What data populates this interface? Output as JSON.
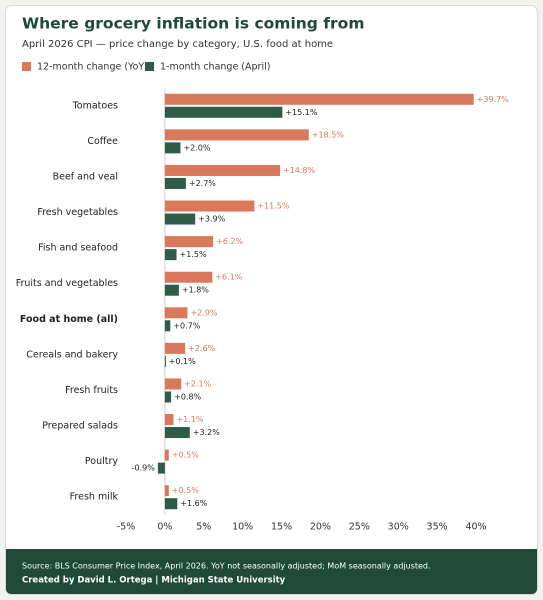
{
  "chart_data": {
    "type": "hbar",
    "title": "Where grocery inflation is coming from",
    "subtitle": "April 2026 CPI — price change by category, U.S. food at home",
    "source": "Source: BLS Consumer Price Index, April 2026. YoY not seasonally adjusted; MoM seasonally adjusted.",
    "credit": "Created by David L. Ortega | Michigan State University",
    "categories": [
      "Tomatoes",
      "Coffee",
      "Beef and veal",
      "Fresh vegetables",
      "Fish and seafood",
      "Fruits and vegetables",
      "Food at home (all)",
      "Cereals and bakery",
      "Fresh fruits",
      "Prepared salads",
      "Poultry",
      "Fresh milk"
    ],
    "bold_categories": [
      "Food at home (all)"
    ],
    "series": [
      {
        "name": "12-month change (YoY)",
        "color": "#d9785a",
        "values": [
          39.7,
          18.5,
          14.8,
          11.5,
          6.2,
          6.1,
          2.9,
          2.6,
          2.1,
          1.1,
          0.5,
          0.5
        ],
        "value_labels": [
          "+39.7%",
          "+18.5%",
          "+14.8%",
          "+11.5%",
          "+6.2%",
          "+6.1%",
          "+2.9%",
          "+2.6%",
          "+2.1%",
          "+1.1%",
          "+0.5%",
          "+0.5%"
        ]
      },
      {
        "name": "1-month change (April)",
        "color": "#2e5c48",
        "values": [
          15.1,
          2.0,
          2.7,
          3.9,
          1.5,
          1.8,
          0.7,
          0.1,
          0.8,
          3.2,
          -0.9,
          1.6
        ],
        "value_labels": [
          "+15.1%",
          "+2.0%",
          "+2.7%",
          "+3.9%",
          "+1.5%",
          "+1.8%",
          "+0.7%",
          "+0.1%",
          "+0.8%",
          "+3.2%",
          "-0.9%",
          "+1.6%"
        ]
      }
    ],
    "xlim": [
      -5,
      40
    ],
    "xticks": [
      {
        "value": -5,
        "label": "-5%"
      },
      {
        "value": 0,
        "label": "0%"
      },
      {
        "value": 5,
        "label": "5%"
      },
      {
        "value": 10,
        "label": "10%"
      },
      {
        "value": 15,
        "label": "15%"
      },
      {
        "value": 20,
        "label": "20%"
      },
      {
        "value": 25,
        "label": "25%"
      },
      {
        "value": 30,
        "label": "30%"
      },
      {
        "value": 35,
        "label": "35%"
      },
      {
        "value": 40,
        "label": "40%"
      }
    ],
    "grid": false,
    "legend": "top-left"
  }
}
